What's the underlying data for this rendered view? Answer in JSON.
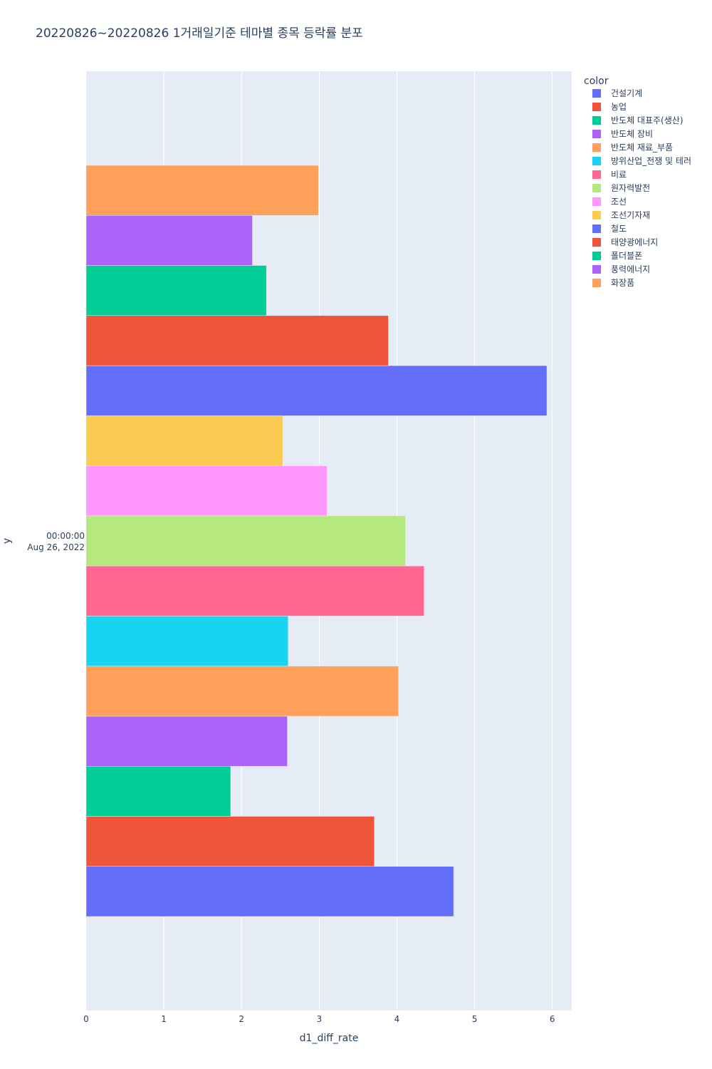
{
  "chart_data": {
    "type": "bar",
    "orientation": "horizontal",
    "title": "20220826~20220826 1거래일기준 테마별 종목 등락률 분포",
    "xlabel": "d1_diff_rate",
    "ylabel": "y",
    "xlim": [
      0,
      6.25
    ],
    "x_ticks": [
      "0",
      "1",
      "2",
      "3",
      "4",
      "5",
      "6"
    ],
    "y_tick_label": [
      "00:00:00",
      "Aug 26, 2022"
    ],
    "grid": true,
    "legend_title": "color",
    "legend_position": "top-right",
    "categories": [
      "Aug 26, 2022"
    ],
    "series": [
      {
        "name": "건설기계",
        "color": "#636efa",
        "value": 4.73
      },
      {
        "name": "농업",
        "color": "#EF553B",
        "value": 3.71
      },
      {
        "name": "반도체 대표주(생산)",
        "color": "#00cc96",
        "value": 1.86
      },
      {
        "name": "반도체 장비",
        "color": "#ab63fa",
        "value": 2.59
      },
      {
        "name": "반도체 재료_부품",
        "color": "#FFA15A",
        "value": 4.02
      },
      {
        "name": "방위산업_전쟁 및 테러",
        "color": "#19d3f3",
        "value": 2.6
      },
      {
        "name": "비료",
        "color": "#FF6692",
        "value": 4.35
      },
      {
        "name": "원자력발전",
        "color": "#B6E880",
        "value": 4.11
      },
      {
        "name": "조선",
        "color": "#FF97FF",
        "value": 3.1
      },
      {
        "name": "조선기자재",
        "color": "#FECB52",
        "value": 2.53
      },
      {
        "name": "철도",
        "color": "#636efa",
        "value": 5.93
      },
      {
        "name": "태양광에너지",
        "color": "#EF553B",
        "value": 3.89
      },
      {
        "name": "폴더블폰",
        "color": "#00cc96",
        "value": 2.32
      },
      {
        "name": "풍력에너지",
        "color": "#ab63fa",
        "value": 2.14
      },
      {
        "name": "화장품",
        "color": "#FFA15A",
        "value": 2.99
      }
    ]
  }
}
